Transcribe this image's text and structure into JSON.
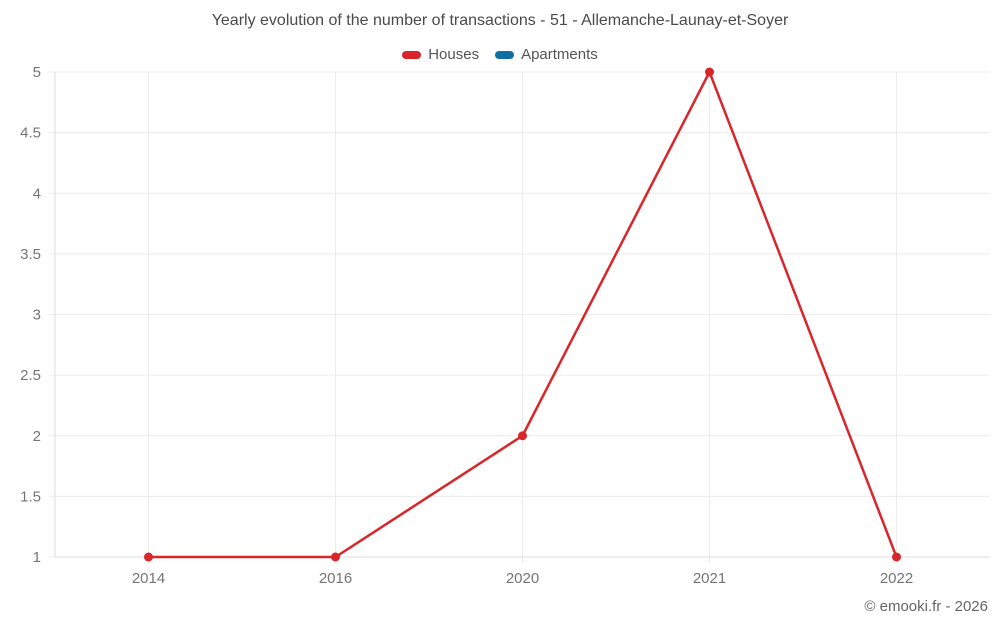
{
  "title": "Yearly evolution of the number of transactions - 51 - Allemanche-Launay-et-Soyer",
  "footer": {
    "copyright": "© emooki.fr - 2026"
  },
  "chart_data": {
    "type": "line",
    "title": "Yearly evolution of the number of transactions - 51 - Allemanche-Launay-et-Soyer",
    "xlabel": "",
    "ylabel": "",
    "categories": [
      "2014",
      "2016",
      "2020",
      "2021",
      "2022"
    ],
    "series": [
      {
        "name": "Houses",
        "color": "#d8262b",
        "values": [
          1,
          1,
          2,
          5,
          1
        ]
      },
      {
        "name": "Apartments",
        "color": "#0f6fa0",
        "values": []
      }
    ],
    "ylim": [
      1,
      5
    ],
    "yticks": [
      "1",
      "1.5",
      "2",
      "2.5",
      "3",
      "3.5",
      "4",
      "4.5",
      "5"
    ],
    "legend_position": "top",
    "grid": true,
    "marker_radius": 4.5,
    "line_width": 2.5,
    "colors": {
      "grid": "#ececec",
      "axis": "#dcdcdc",
      "tick_label": "#757575",
      "title": "#4a4a4a",
      "legend_label": "#555555",
      "copyright": "#666666",
      "background": "#ffffff"
    }
  }
}
